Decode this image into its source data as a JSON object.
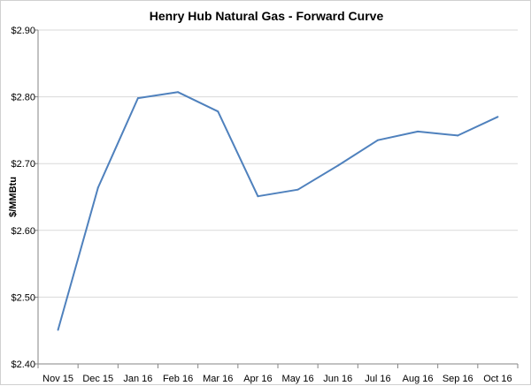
{
  "chart_data": {
    "type": "line",
    "title": "Henry Hub Natural Gas - Forward Curve",
    "xlabel": "",
    "ylabel": "$/MMBtu",
    "ylim": [
      2.4,
      2.9
    ],
    "y_ticks": [
      2.4,
      2.5,
      2.6,
      2.7,
      2.8,
      2.9
    ],
    "y_tick_labels": [
      "$2.40",
      "$2.50",
      "$2.60",
      "$2.70",
      "$2.80",
      "$2.90"
    ],
    "grid": true,
    "legend": "none",
    "categories": [
      "Nov 15",
      "Dec 15",
      "Jan 16",
      "Feb 16",
      "Mar 16",
      "Apr 16",
      "May 16",
      "Jun 16",
      "Jul 16",
      "Aug 16",
      "Sep 16",
      "Oct 16"
    ],
    "series": [
      {
        "name": "",
        "color": "#4f81bd",
        "values": [
          2.451,
          2.664,
          2.798,
          2.807,
          2.778,
          2.651,
          2.661,
          2.697,
          2.735,
          2.748,
          2.742,
          2.77
        ]
      }
    ]
  }
}
